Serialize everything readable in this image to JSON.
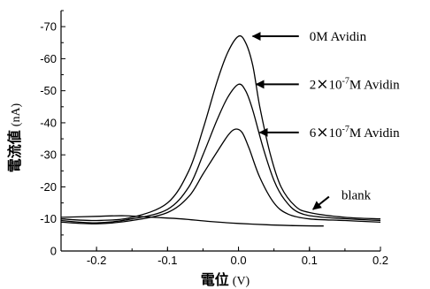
{
  "chart_data": {
    "type": "line",
    "title": "",
    "xlabel": "電位",
    "xunit": "(V)",
    "ylabel": "電流値",
    "yunit": "(nA)",
    "xlim": [
      -0.25,
      0.2
    ],
    "ylim": [
      0,
      -75
    ],
    "y_inverted": true,
    "grid": false,
    "legend": "none",
    "xticks": [
      -0.2,
      -0.1,
      0.0,
      0.1,
      0.2
    ],
    "xtick_labels": [
      "-0.2",
      "-0.1",
      "0.0",
      "0.1",
      "0.2"
    ],
    "yticks": [
      0,
      -10,
      -20,
      -30,
      -40,
      -50,
      -60,
      -70
    ],
    "ytick_labels": [
      "0",
      "-10",
      "-20",
      "-30",
      "-40",
      "-50",
      "-60",
      "-70"
    ],
    "series": [
      {
        "id": "avidin-0",
        "points": [
          [
            -0.25,
            -10
          ],
          [
            -0.2,
            -9.5
          ],
          [
            -0.15,
            -10.5
          ],
          [
            -0.1,
            -15
          ],
          [
            -0.07,
            -25
          ],
          [
            -0.05,
            -38
          ],
          [
            -0.03,
            -53
          ],
          [
            -0.015,
            -62
          ],
          [
            0.0,
            -67
          ],
          [
            0.01,
            -65
          ],
          [
            0.02,
            -58
          ],
          [
            0.03,
            -45
          ],
          [
            0.045,
            -30
          ],
          [
            0.06,
            -20
          ],
          [
            0.08,
            -14
          ],
          [
            0.1,
            -12
          ],
          [
            0.15,
            -10.5
          ],
          [
            0.2,
            -10
          ]
        ]
      },
      {
        "id": "avidin-2e-7",
        "points": [
          [
            -0.25,
            -9.5
          ],
          [
            -0.2,
            -8.8
          ],
          [
            -0.15,
            -10
          ],
          [
            -0.1,
            -13
          ],
          [
            -0.07,
            -20
          ],
          [
            -0.05,
            -30
          ],
          [
            -0.03,
            -41
          ],
          [
            -0.015,
            -48
          ],
          [
            0.0,
            -52
          ],
          [
            0.01,
            -50
          ],
          [
            0.02,
            -44
          ],
          [
            0.035,
            -32
          ],
          [
            0.05,
            -22
          ],
          [
            0.065,
            -16
          ],
          [
            0.085,
            -12
          ],
          [
            0.12,
            -10.5
          ],
          [
            0.2,
            -9.5
          ]
        ]
      },
      {
        "id": "avidin-6e-7",
        "points": [
          [
            -0.25,
            -9
          ],
          [
            -0.2,
            -8.5
          ],
          [
            -0.15,
            -9.5
          ],
          [
            -0.1,
            -12
          ],
          [
            -0.07,
            -17
          ],
          [
            -0.05,
            -24
          ],
          [
            -0.03,
            -31
          ],
          [
            -0.015,
            -36
          ],
          [
            -0.005,
            -38
          ],
          [
            0.005,
            -37
          ],
          [
            0.015,
            -32
          ],
          [
            0.03,
            -23
          ],
          [
            0.05,
            -15
          ],
          [
            0.07,
            -11.5
          ],
          [
            0.1,
            -10
          ],
          [
            0.15,
            -9.5
          ],
          [
            0.2,
            -9
          ]
        ]
      },
      {
        "id": "blank",
        "points": [
          [
            -0.25,
            -10.5
          ],
          [
            -0.2,
            -10.8
          ],
          [
            -0.16,
            -11
          ],
          [
            -0.12,
            -10.5
          ],
          [
            -0.08,
            -10
          ],
          [
            -0.04,
            -9.2
          ],
          [
            0.0,
            -8.6
          ],
          [
            0.04,
            -8.2
          ],
          [
            0.08,
            -7.9
          ],
          [
            0.12,
            -7.8
          ]
        ]
      }
    ],
    "annotations": [
      {
        "id": "annot-0",
        "parts": [
          {
            "t": "0M  Avidin"
          }
        ],
        "at": [
          0.09,
          -67
        ],
        "arrow_to": [
          0.02,
          -67
        ]
      },
      {
        "id": "annot-2",
        "parts": [
          {
            "t": "2"
          },
          {
            "t": "×",
            "cls": "times"
          },
          {
            "t": "10"
          },
          {
            "t": "-7",
            "sup": true
          },
          {
            "t": "M  Avidin"
          }
        ],
        "at": [
          0.09,
          -52
        ],
        "arrow_to": [
          0.025,
          -52
        ]
      },
      {
        "id": "annot-6",
        "parts": [
          {
            "t": "6"
          },
          {
            "t": "×",
            "cls": "times"
          },
          {
            "t": "10"
          },
          {
            "t": "-7",
            "sup": true
          },
          {
            "t": "M  Avidin"
          }
        ],
        "at": [
          0.09,
          -37
        ],
        "arrow_to": [
          0.03,
          -37
        ]
      },
      {
        "id": "annot-blank",
        "parts": [
          {
            "t": "blank"
          }
        ],
        "at": [
          0.135,
          -17.5
        ],
        "arrow_to": [
          0.105,
          -13
        ]
      }
    ]
  }
}
